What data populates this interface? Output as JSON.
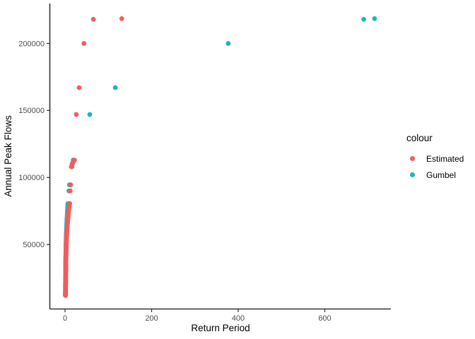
{
  "figure": {
    "background": "#ffffff",
    "axis_line_color": "#333333",
    "tick_mark_color": "#333333",
    "tick_label_color": "#4d4d4d"
  },
  "legend": {
    "title": "colour",
    "items": [
      {
        "label": "Estimated",
        "color": "#f25d5c"
      },
      {
        "label": "Gumbel",
        "color": "#19b8bc"
      }
    ]
  },
  "chart_data": {
    "type": "scatter",
    "title": "",
    "xlabel": "Return Period",
    "ylabel": "Annual Peak Flows",
    "xlim": [
      -35,
      750
    ],
    "ylim": [
      1700,
      229000
    ],
    "grid": false,
    "legend_position": "right",
    "x_ticks": [
      0,
      200,
      400,
      600
    ],
    "x_tick_labels": [
      "0",
      "200",
      "400",
      "600"
    ],
    "y_ticks": [
      50000,
      100000,
      150000,
      200000
    ],
    "y_tick_labels": [
      "50000",
      "100000",
      "150000",
      "200000"
    ],
    "point_radius_px": 3.4,
    "flows": [
      218500,
      218000,
      200000,
      167000,
      147000,
      113000,
      111500,
      110000,
      108000,
      94500,
      90000,
      80500,
      79000,
      77500,
      76000,
      74500,
      73000,
      71500,
      70000,
      69000,
      68000,
      67000,
      66000,
      65000,
      64200,
      63400,
      62600,
      61800,
      61000,
      60300,
      59600,
      58900,
      58200,
      57500,
      56800,
      56200,
      55600,
      55000,
      54400,
      53800,
      53200,
      52600,
      52000,
      51500,
      51000,
      50500,
      50000,
      49500,
      49000,
      48500,
      48000,
      47500,
      47000,
      46500,
      46000,
      45500,
      45000,
      44500,
      44000,
      43500,
      43000,
      42500,
      42000,
      41500,
      41000,
      40500,
      40000,
      39500,
      39000,
      38500,
      38000,
      37500,
      37000,
      36500,
      36000,
      35500,
      35000,
      34500,
      34000,
      33500,
      33000,
      32500,
      32000,
      31500,
      31000,
      30500,
      30000,
      29500,
      29000,
      28500,
      28000,
      27500,
      27000,
      26500,
      26000,
      25500,
      25000,
      24500,
      24000,
      23500,
      23000,
      22500,
      22000,
      21500,
      21000,
      20500,
      20000,
      19500,
      19000,
      18500,
      18000,
      17500,
      17000,
      16500,
      16000,
      15500,
      15000,
      14500,
      14000,
      13800,
      13600,
      13400,
      13200,
      13000,
      12800,
      12600,
      12400,
      12200,
      12100,
      12000
    ],
    "series": [
      {
        "name": "Estimated",
        "color": "#f25d5c",
        "x": [
          131,
          65.5,
          43.67,
          32.75,
          26.2,
          21.83,
          18.71,
          16.38,
          14.56,
          13.1,
          11.91,
          10.92,
          10.08,
          9.36,
          8.73,
          8.19,
          7.71,
          7.28,
          6.89,
          6.55,
          6.24,
          5.95,
          5.7,
          5.46,
          5.24,
          5.04,
          4.85,
          4.68,
          4.52,
          4.37,
          4.23,
          4.09,
          3.97,
          3.85,
          3.74,
          3.64,
          3.54,
          3.45,
          3.36,
          3.28,
          3.2,
          3.12,
          3.05,
          2.98,
          2.91,
          2.85,
          2.79,
          2.73,
          2.67,
          2.62,
          2.57,
          2.52,
          2.47,
          2.43,
          2.38,
          2.34,
          2.3,
          2.26,
          2.22,
          2.18,
          2.15,
          2.11,
          2.08,
          2.05,
          2.02,
          1.98,
          1.96,
          1.93,
          1.9,
          1.87,
          1.85,
          1.82,
          1.79,
          1.77,
          1.75,
          1.72,
          1.7,
          1.68,
          1.66,
          1.64,
          1.62,
          1.6,
          1.58,
          1.56,
          1.54,
          1.52,
          1.51,
          1.49,
          1.47,
          1.46,
          1.44,
          1.42,
          1.41,
          1.39,
          1.38,
          1.36,
          1.35,
          1.34,
          1.32,
          1.31,
          1.3,
          1.28,
          1.27,
          1.26,
          1.25,
          1.24,
          1.22,
          1.21,
          1.2,
          1.19,
          1.18,
          1.17,
          1.16,
          1.15,
          1.14,
          1.13,
          1.12,
          1.11,
          1.1,
          1.09,
          1.08,
          1.07,
          1.07,
          1.06,
          1.05,
          1.04,
          1.03,
          1.02,
          1.02,
          1.01
        ]
      },
      {
        "name": "Gumbel",
        "color": "#19b8bc",
        "x": [
          715,
          690,
          377,
          116,
          57.2,
          19.1,
          18.1,
          17.2,
          16.1,
          10.3,
          8.9,
          6.6,
          6.25,
          5.95,
          5.7,
          5.45,
          5.2,
          4.95,
          4.72,
          4.56,
          4.41,
          4.27,
          4.13,
          4.0,
          3.9,
          3.8,
          3.71,
          3.62,
          3.53,
          3.46,
          3.38,
          3.31,
          3.24,
          3.17,
          3.11,
          3.05,
          3.0,
          2.94,
          2.89,
          2.84,
          2.79,
          2.74,
          2.69,
          2.66,
          2.62,
          2.58,
          2.55,
          2.51,
          2.48,
          2.45,
          2.41,
          2.38,
          2.35,
          2.32,
          2.29,
          2.26,
          2.23,
          2.2,
          2.18,
          2.15,
          2.12,
          2.1,
          2.07,
          2.05,
          2.02,
          2.0,
          1.98,
          1.95,
          1.93,
          1.91,
          1.89,
          1.87,
          1.85,
          1.83,
          1.81,
          1.79,
          1.77,
          1.75,
          1.73,
          1.71,
          1.7,
          1.68,
          1.66,
          1.64,
          1.63,
          1.61,
          1.6,
          1.58,
          1.57,
          1.55,
          1.54,
          1.52,
          1.51,
          1.49,
          1.48,
          1.47,
          1.45,
          1.44,
          1.43,
          1.42,
          1.4,
          1.39,
          1.38,
          1.37,
          1.36,
          1.35,
          1.34,
          1.33,
          1.32,
          1.31,
          1.3,
          1.29,
          1.28,
          1.27,
          1.26,
          1.25,
          1.24,
          1.24,
          1.23,
          1.23,
          1.22,
          1.22,
          1.21,
          1.21,
          1.2,
          1.2,
          1.19,
          1.19,
          1.19,
          1.18
        ]
      }
    ]
  }
}
